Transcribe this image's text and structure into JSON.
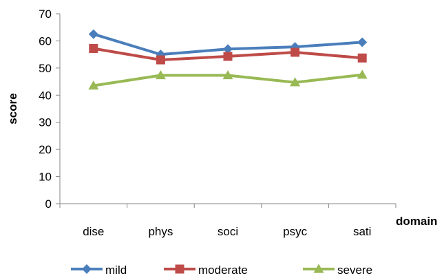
{
  "chart_data": {
    "type": "line",
    "categories": [
      "dise",
      "phys",
      "soci",
      "psyc",
      "sati"
    ],
    "series": [
      {
        "name": "mild",
        "values": [
          62.5,
          55.0,
          57.0,
          57.8,
          59.5
        ],
        "color": "#4a7ebb",
        "marker": "diamond"
      },
      {
        "name": "moderate",
        "values": [
          57.2,
          53.0,
          54.3,
          55.8,
          53.7
        ],
        "color": "#be4b48",
        "marker": "square"
      },
      {
        "name": "severe",
        "values": [
          43.5,
          47.3,
          47.3,
          44.7,
          47.5
        ],
        "color": "#98b954",
        "marker": "triangle"
      }
    ],
    "xlabel": "domain",
    "ylabel": "score",
    "ylim": [
      0,
      70
    ],
    "yticks": [
      0,
      10,
      20,
      30,
      40,
      50,
      60,
      70
    ],
    "grid": false,
    "legend_position": "bottom"
  }
}
